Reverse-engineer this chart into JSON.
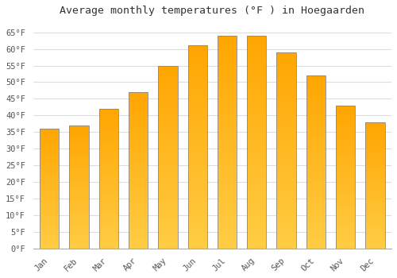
{
  "title": "Average monthly temperatures (°F ) in Hoegaarden",
  "months": [
    "Jan",
    "Feb",
    "Mar",
    "Apr",
    "May",
    "Jun",
    "Jul",
    "Aug",
    "Sep",
    "Oct",
    "Nov",
    "Dec"
  ],
  "values": [
    36,
    37,
    42,
    47,
    55,
    61,
    64,
    64,
    59,
    52,
    43,
    38
  ],
  "yticks": [
    0,
    5,
    10,
    15,
    20,
    25,
    30,
    35,
    40,
    45,
    50,
    55,
    60,
    65
  ],
  "ylim": [
    0,
    68
  ],
  "background_color": "#FFFFFF",
  "plot_bg_color": "#FFFFFF",
  "grid_color": "#DDDDDD",
  "title_fontsize": 9.5,
  "tick_fontsize": 7.5,
  "bar_color_bottom": "#FFCC44",
  "bar_color_top": "#FFA500",
  "bar_edge_color": "#888888",
  "bar_width": 0.65
}
